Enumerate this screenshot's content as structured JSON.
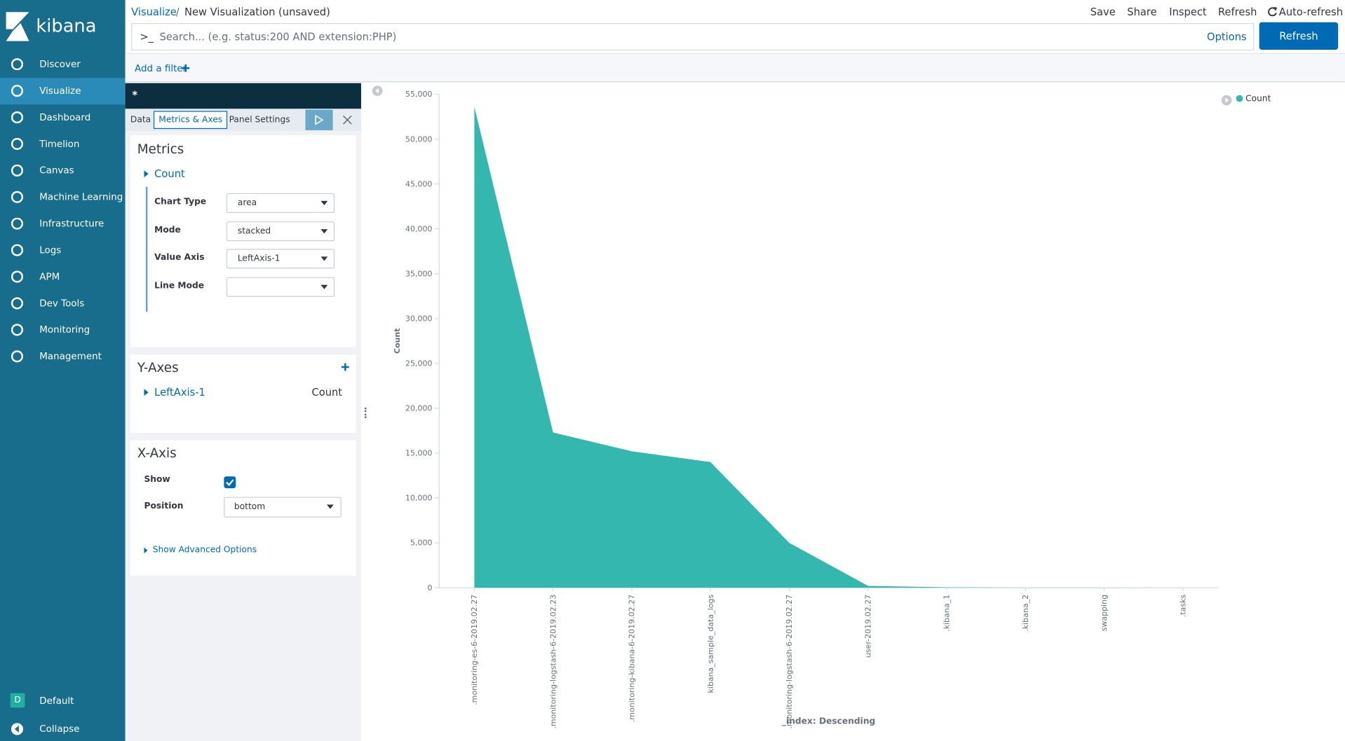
{
  "sidebar": {
    "brand": "kibana",
    "nav": [
      "Discover",
      "Visualize",
      "Dashboard",
      "Timelion",
      "Canvas",
      "Machine Learning",
      "Infrastructure",
      "Logs",
      "APM",
      "Dev Tools",
      "Monitoring",
      "Management"
    ],
    "space_initial": "D",
    "space": "Default",
    "collapse": "Collapse"
  },
  "header": {
    "breadcrumb_parent": "Visualize",
    "breadcrumb_separator": "/",
    "breadcrumb_current": "New Visualization (unsaved)",
    "actions": [
      "Save",
      "Share",
      "Inspect",
      "Refresh",
      "Auto-refresh"
    ]
  },
  "query": {
    "prompt": ">_",
    "placeholder": "Search... (e.g. status:200 AND extension:PHP)",
    "options": "Options",
    "refresh": "Refresh"
  },
  "filter": {
    "add": "Add a filter"
  },
  "editor": {
    "index_pattern": "*",
    "tabs": [
      "Data",
      "Metrics & Axes",
      "Panel Settings"
    ],
    "metrics": {
      "title": "Metrics",
      "agg": "Count",
      "fields": [
        {
          "label": "Chart Type",
          "value": "area"
        },
        {
          "label": "Mode",
          "value": "stacked"
        },
        {
          "label": "Value Axis",
          "value": "LeftAxis-1"
        },
        {
          "label": "Line Mode"
        }
      ]
    },
    "y_axes": {
      "title": "Y-Axes",
      "axis": "LeftAxis-1",
      "axis_type": "Count"
    },
    "x_axis": {
      "title": "X-Axis",
      "show": "Show",
      "position_label": "Position",
      "position": "bottom",
      "advanced": "Show Advanced Options"
    }
  },
  "chart_data": {
    "type": "area",
    "categories": [
      ".monitoring-es-6-2019.02.27",
      ".monitoring-logstash-6-2019.02.23",
      ".monitoring-kibana-6-2019.02.27",
      "kibana_sample_data_logs",
      ".monitoring-logstash-6-2019.02.27",
      "user-2019.02.27",
      ".kibana_1",
      ".kibana_2",
      "swapping",
      ".tasks"
    ],
    "series": [
      {
        "name": "Count",
        "color": "#34b7ae",
        "values": [
          53600,
          17300,
          15200,
          14000,
          5000,
          200,
          50,
          10,
          5,
          2
        ]
      }
    ],
    "ylabel": "Count",
    "xlabel": "_index: Descending",
    "ylim": [
      0,
      55000
    ],
    "yticks": [
      0,
      {
        "value": 5000,
        "label": "5,000"
      },
      {
        "value": 10000,
        "label": "10,000"
      },
      {
        "value": 15000,
        "label": "15,000"
      },
      {
        "value": 20000,
        "label": "20,000"
      },
      {
        "value": 25000,
        "label": "25,000"
      },
      {
        "value": 30000,
        "label": "30,000"
      },
      {
        "value": 35000,
        "label": "35,000"
      },
      {
        "value": 40000,
        "label": "40,000"
      },
      {
        "value": 45000,
        "label": "45,000"
      },
      {
        "value": 50000,
        "label": "50,000"
      },
      {
        "value": 55000,
        "label": "55,000"
      }
    ],
    "grid": false,
    "legend": "top-right"
  }
}
